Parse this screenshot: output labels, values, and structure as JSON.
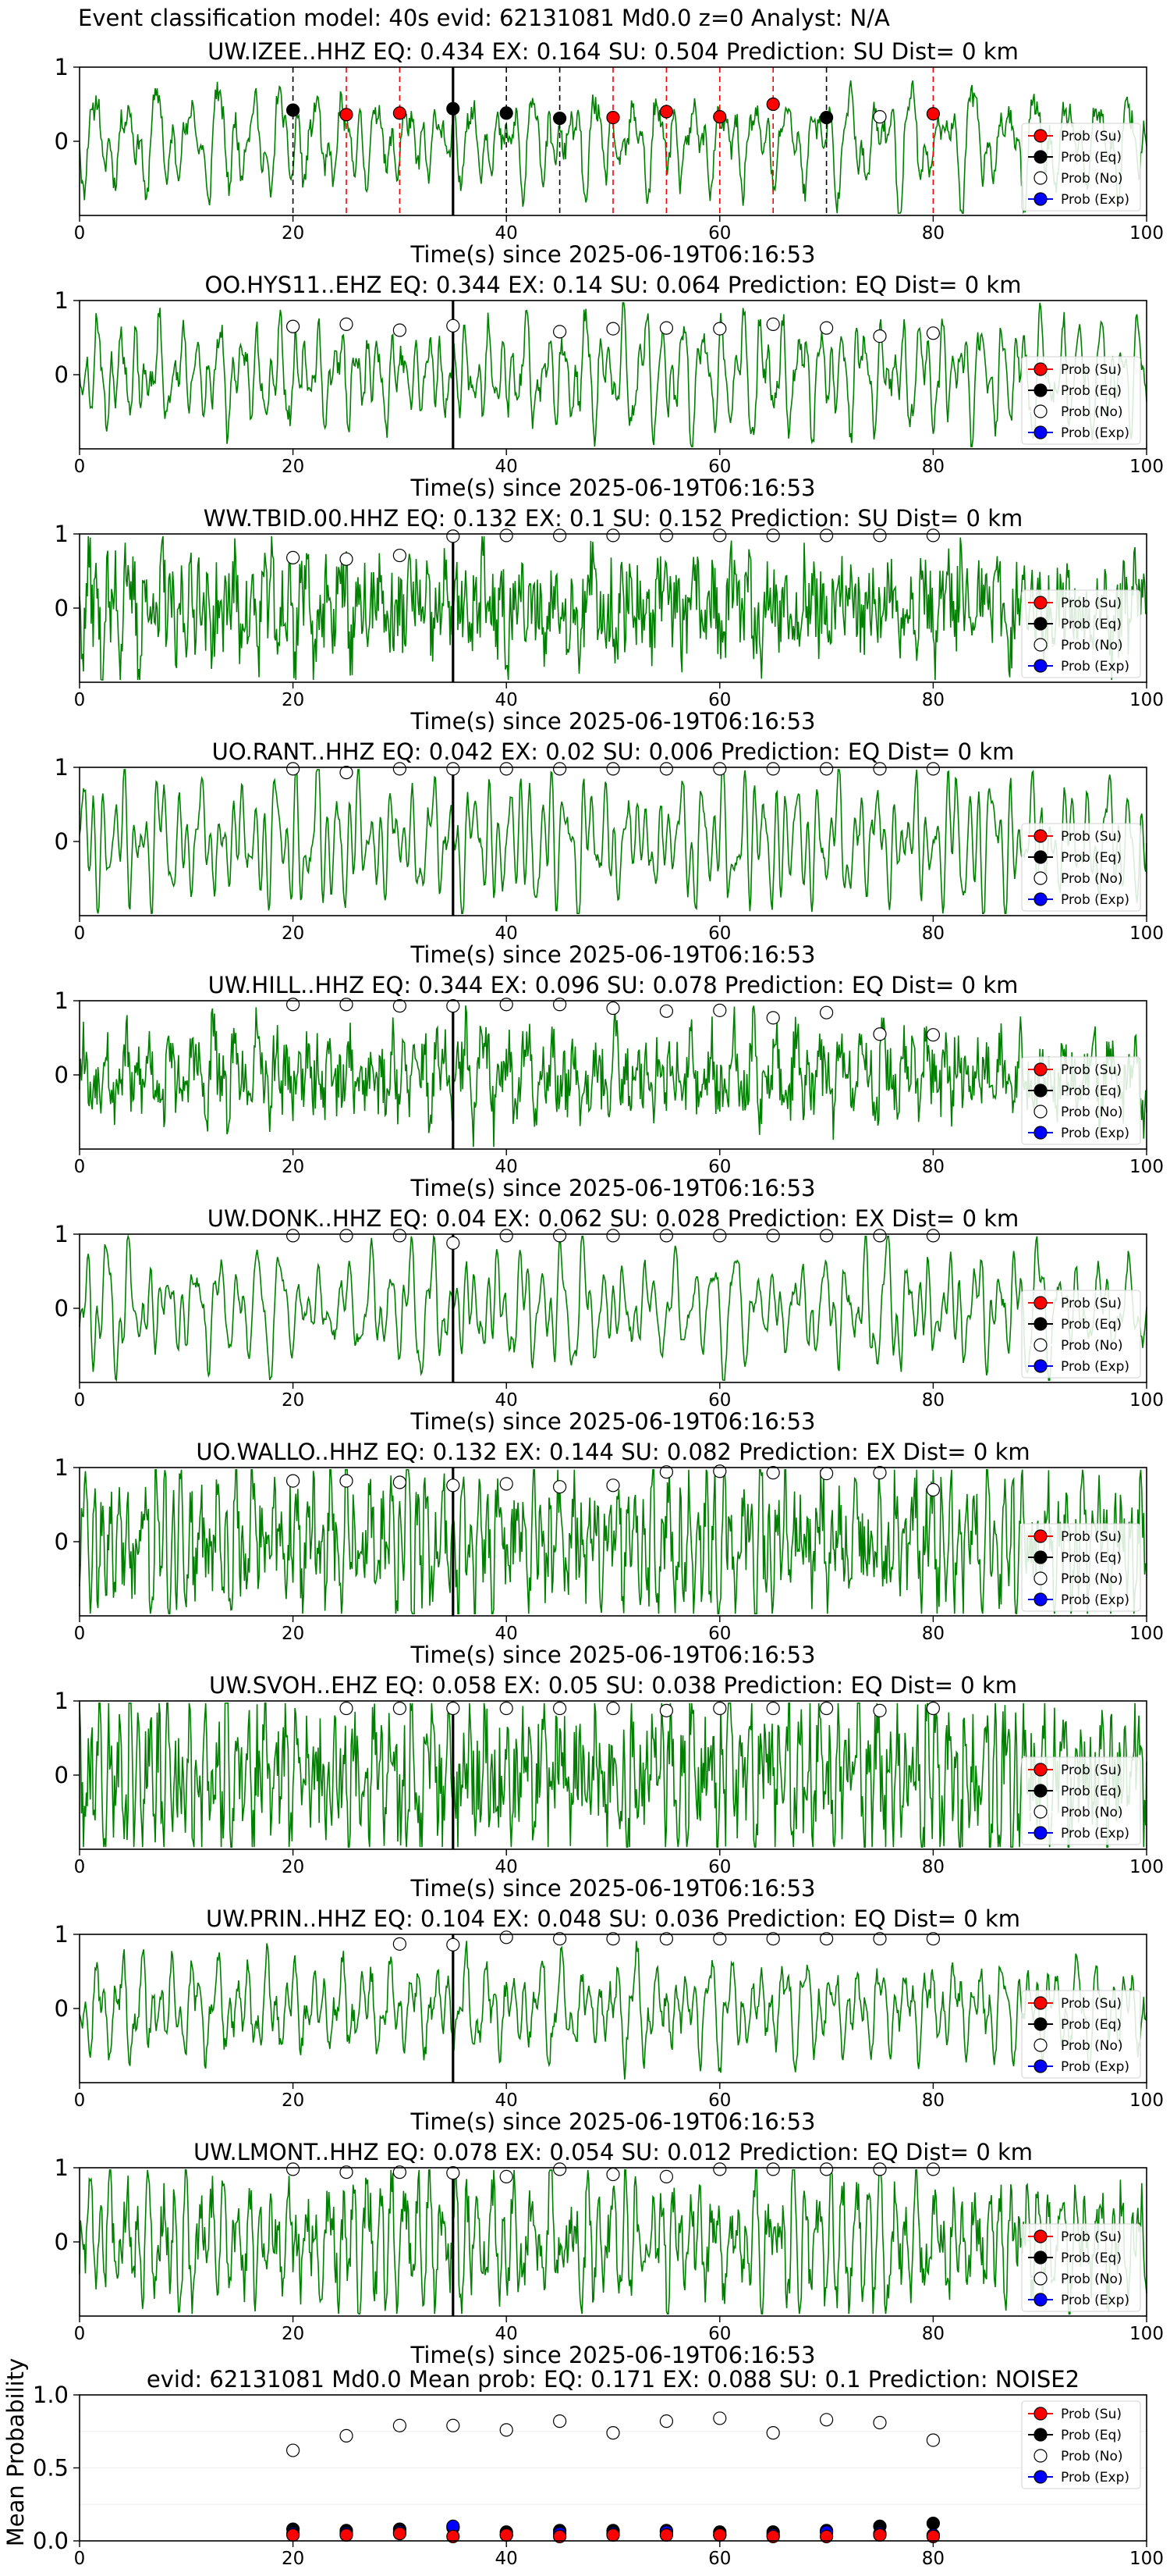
{
  "figure": {
    "title": "Event classification model: 40s evid: 62131081 Md0.0 z=0 Analyst: N/A"
  },
  "colors": {
    "waveform": "#008000",
    "su": "#ff0000",
    "eq": "#000000",
    "no": "#ffffff",
    "exp": "#0000ff",
    "pick_line": "#000000",
    "eq_window": "#000000",
    "su_window": "#ff0000"
  },
  "chart_data": [
    {
      "type": "line",
      "title": "UW.IZEE..HHZ   EQ: 0.434  EX: 0.164  SU: 0.504   Prediction: SU    Dist= 0 km",
      "xlabel": "Time(s) since 2025-06-19T06:16:53",
      "x_ticks": [
        "0",
        "20",
        "40",
        "60",
        "80",
        "100"
      ],
      "y_ticks": [
        "1",
        "0"
      ],
      "xlim": [
        0,
        100
      ],
      "ylim": [
        -1,
        1
      ],
      "pick_time": 35,
      "eq_windows": [
        20,
        35,
        40,
        45,
        70
      ],
      "su_windows": [
        25,
        30,
        50,
        55,
        60,
        65,
        80
      ],
      "legend": [
        "Prob (Su)",
        "Prob (Eq)",
        "Prob (No)",
        "Prob (Exp)"
      ],
      "legend_position": "right",
      "series": [
        {
          "class": "eq",
          "x": [
            20,
            35,
            40,
            45,
            70
          ],
          "y": [
            0.42,
            0.44,
            0.38,
            0.31,
            0.32
          ]
        },
        {
          "class": "su",
          "x": [
            25,
            30,
            50,
            55,
            60,
            65,
            80
          ],
          "y": [
            0.36,
            0.38,
            0.32,
            0.4,
            0.33,
            0.5,
            0.37
          ]
        },
        {
          "class": "no",
          "x": [
            75
          ],
          "y": [
            0.33
          ]
        }
      ]
    },
    {
      "type": "line",
      "title": "OO.HYS11..EHZ   EQ: 0.344  EX: 0.14  SU: 0.064   Prediction: EQ    Dist= 0 km",
      "xlabel": "Time(s) since 2025-06-19T06:16:53",
      "x_ticks": [
        "0",
        "20",
        "40",
        "60",
        "80",
        "100"
      ],
      "y_ticks": [
        "1",
        "0"
      ],
      "xlim": [
        0,
        100
      ],
      "ylim": [
        -1,
        1
      ],
      "pick_time": 35,
      "legend": [
        "Prob (Su)",
        "Prob (Eq)",
        "Prob (No)",
        "Prob (Exp)"
      ],
      "legend_position": "right",
      "series": [
        {
          "class": "no",
          "x": [
            20,
            25,
            30,
            35,
            45,
            50,
            55,
            60,
            65,
            70,
            75,
            80
          ],
          "y": [
            0.65,
            0.68,
            0.6,
            0.66,
            0.58,
            0.62,
            0.63,
            0.62,
            0.68,
            0.63,
            0.52,
            0.56
          ]
        }
      ]
    },
    {
      "type": "line",
      "title": "WW.TBID.00.HHZ   EQ: 0.132  EX: 0.1  SU: 0.152   Prediction: SU    Dist= 0 km",
      "xlabel": "Time(s) since 2025-06-19T06:16:53",
      "x_ticks": [
        "0",
        "20",
        "40",
        "60",
        "80",
        "100"
      ],
      "y_ticks": [
        "1",
        "0"
      ],
      "xlim": [
        0,
        100
      ],
      "ylim": [
        -1,
        1
      ],
      "pick_time": 35,
      "legend": [
        "Prob (Su)",
        "Prob (Eq)",
        "Prob (No)",
        "Prob (Exp)"
      ],
      "legend_position": "right",
      "series": [
        {
          "class": "no",
          "x": [
            20,
            25,
            30,
            35,
            40,
            45,
            50,
            55,
            60,
            65,
            70,
            75,
            80
          ],
          "y": [
            0.68,
            0.66,
            0.71,
            0.97,
            0.98,
            0.98,
            0.98,
            0.98,
            0.98,
            0.98,
            0.98,
            0.98,
            0.98
          ]
        }
      ]
    },
    {
      "type": "line",
      "title": "UO.RANT..HHZ   EQ: 0.042  EX: 0.02  SU: 0.006   Prediction: EQ    Dist= 0 km",
      "xlabel": "Time(s) since 2025-06-19T06:16:53",
      "x_ticks": [
        "0",
        "20",
        "40",
        "60",
        "80",
        "100"
      ],
      "y_ticks": [
        "1",
        "0"
      ],
      "xlim": [
        0,
        100
      ],
      "ylim": [
        -1,
        1
      ],
      "pick_time": 35,
      "legend": [
        "Prob (Su)",
        "Prob (Eq)",
        "Prob (No)",
        "Prob (Exp)"
      ],
      "legend_position": "right",
      "series": [
        {
          "class": "no",
          "x": [
            20,
            25,
            30,
            35,
            40,
            45,
            50,
            55,
            60,
            65,
            70,
            75,
            80
          ],
          "y": [
            0.98,
            0.93,
            0.98,
            0.98,
            0.98,
            0.98,
            0.98,
            0.98,
            0.98,
            0.98,
            0.98,
            0.98,
            0.98
          ]
        }
      ]
    },
    {
      "type": "line",
      "title": "UW.HILL..HHZ   EQ: 0.344  EX: 0.096  SU: 0.078   Prediction: EQ    Dist= 0 km",
      "xlabel": "Time(s) since 2025-06-19T06:16:53",
      "x_ticks": [
        "0",
        "20",
        "40",
        "60",
        "80",
        "100"
      ],
      "y_ticks": [
        "1",
        "0"
      ],
      "xlim": [
        0,
        100
      ],
      "ylim": [
        -1,
        1
      ],
      "pick_time": 35,
      "legend": [
        "Prob (Su)",
        "Prob (Eq)",
        "Prob (No)",
        "Prob (Exp)"
      ],
      "legend_position": "right",
      "series": [
        {
          "class": "no",
          "x": [
            20,
            25,
            30,
            35,
            40,
            45,
            50,
            55,
            60,
            65,
            70,
            75,
            80
          ],
          "y": [
            0.95,
            0.95,
            0.93,
            0.93,
            0.95,
            0.95,
            0.9,
            0.86,
            0.87,
            0.77,
            0.84,
            0.55,
            0.54
          ]
        }
      ]
    },
    {
      "type": "line",
      "title": "UW.DONK..HHZ   EQ: 0.04  EX: 0.062  SU: 0.028   Prediction: EX    Dist= 0 km",
      "xlabel": "Time(s) since 2025-06-19T06:16:53",
      "x_ticks": [
        "0",
        "20",
        "40",
        "60",
        "80",
        "100"
      ],
      "y_ticks": [
        "1",
        "0"
      ],
      "xlim": [
        0,
        100
      ],
      "ylim": [
        -1,
        1
      ],
      "pick_time": 35,
      "legend": [
        "Prob (Su)",
        "Prob (Eq)",
        "Prob (No)",
        "Prob (Exp)"
      ],
      "legend_position": "right",
      "series": [
        {
          "class": "no",
          "x": [
            20,
            25,
            30,
            35,
            40,
            45,
            50,
            55,
            60,
            65,
            70,
            75,
            80
          ],
          "y": [
            0.98,
            0.98,
            0.98,
            0.88,
            0.98,
            0.98,
            0.98,
            0.98,
            0.98,
            0.98,
            0.98,
            0.98,
            0.98
          ]
        }
      ]
    },
    {
      "type": "line",
      "title": "UO.WALLO..HHZ   EQ: 0.132  EX: 0.144  SU: 0.082   Prediction: EX    Dist= 0 km",
      "xlabel": "Time(s) since 2025-06-19T06:16:53",
      "x_ticks": [
        "0",
        "20",
        "40",
        "60",
        "80",
        "100"
      ],
      "y_ticks": [
        "1",
        "0"
      ],
      "xlim": [
        0,
        100
      ],
      "ylim": [
        -1,
        1
      ],
      "pick_time": 35,
      "legend": [
        "Prob (Su)",
        "Prob (Eq)",
        "Prob (No)",
        "Prob (Exp)"
      ],
      "legend_position": "right",
      "series": [
        {
          "class": "no",
          "x": [
            20,
            25,
            30,
            35,
            40,
            45,
            50,
            55,
            60,
            65,
            70,
            75,
            80
          ],
          "y": [
            0.82,
            0.82,
            0.8,
            0.76,
            0.78,
            0.74,
            0.76,
            0.94,
            0.95,
            0.93,
            0.92,
            0.93,
            0.7
          ]
        }
      ]
    },
    {
      "type": "line",
      "title": "UW.SVOH..EHZ   EQ: 0.058  EX: 0.05  SU: 0.038   Prediction: EQ    Dist= 0 km",
      "xlabel": "Time(s) since 2025-06-19T06:16:53",
      "x_ticks": [
        "0",
        "20",
        "40",
        "60",
        "80",
        "100"
      ],
      "y_ticks": [
        "1",
        "0"
      ],
      "xlim": [
        0,
        100
      ],
      "ylim": [
        -1,
        1
      ],
      "pick_time": 35,
      "legend": [
        "Prob (Su)",
        "Prob (Eq)",
        "Prob (No)",
        "Prob (Exp)"
      ],
      "legend_position": "right",
      "series": [
        {
          "class": "no",
          "x": [
            25,
            30,
            35,
            40,
            45,
            50,
            55,
            60,
            65,
            70,
            75,
            80
          ],
          "y": [
            0.9,
            0.9,
            0.9,
            0.9,
            0.9,
            0.9,
            0.87,
            0.9,
            0.9,
            0.9,
            0.87,
            0.9
          ]
        }
      ]
    },
    {
      "type": "line",
      "title": "UW.PRIN..HHZ   EQ: 0.104  EX: 0.048  SU: 0.036   Prediction: EQ    Dist= 0 km",
      "xlabel": "Time(s) since 2025-06-19T06:16:53",
      "x_ticks": [
        "0",
        "20",
        "40",
        "60",
        "80",
        "100"
      ],
      "y_ticks": [
        "1",
        "0"
      ],
      "xlim": [
        0,
        100
      ],
      "ylim": [
        -1,
        1
      ],
      "pick_time": 35,
      "legend": [
        "Prob (Su)",
        "Prob (Eq)",
        "Prob (No)",
        "Prob (Exp)"
      ],
      "legend_position": "right",
      "series": [
        {
          "class": "no",
          "x": [
            30,
            35,
            40,
            45,
            50,
            55,
            60,
            65,
            70,
            75,
            80
          ],
          "y": [
            0.87,
            0.86,
            0.96,
            0.94,
            0.94,
            0.94,
            0.94,
            0.94,
            0.94,
            0.94,
            0.94
          ]
        }
      ]
    },
    {
      "type": "line",
      "title": "UW.LMONT..HHZ   EQ: 0.078  EX: 0.054  SU: 0.012   Prediction: EQ    Dist= 0 km",
      "xlabel": "Time(s) since 2025-06-19T06:16:53",
      "x_ticks": [
        "0",
        "20",
        "40",
        "60",
        "80",
        "100"
      ],
      "y_ticks": [
        "1",
        "0"
      ],
      "xlim": [
        0,
        100
      ],
      "ylim": [
        -1,
        1
      ],
      "pick_time": 35,
      "legend": [
        "Prob (Su)",
        "Prob (Eq)",
        "Prob (No)",
        "Prob (Exp)"
      ],
      "legend_position": "right",
      "series": [
        {
          "class": "no",
          "x": [
            20,
            25,
            30,
            35,
            40,
            45,
            50,
            55,
            60,
            65,
            70,
            75,
            80
          ],
          "y": [
            0.98,
            0.94,
            0.94,
            0.93,
            0.88,
            0.98,
            0.91,
            0.88,
            0.98,
            0.98,
            0.98,
            0.98,
            0.98
          ]
        }
      ]
    },
    {
      "type": "scatter",
      "title": "evid: 62131081  Md0.0   Mean prob:   EQ: 0.171  EX: 0.088  SU: 0.1   Prediction: NOISE2",
      "xlabel": "",
      "ylabel": "Mean Probability",
      "x_ticks": [
        "0",
        "20",
        "40",
        "60",
        "80",
        "100"
      ],
      "y_ticks": [
        "1.0",
        "0.5",
        "0.0"
      ],
      "xlim": [
        0,
        100
      ],
      "ylim": [
        0,
        1
      ],
      "legend": [
        "Prob (Su)",
        "Prob (Eq)",
        "Prob (No)",
        "Prob (Exp)"
      ],
      "legend_position": "right",
      "series": [
        {
          "class": "no",
          "x": [
            20,
            25,
            30,
            35,
            40,
            45,
            50,
            55,
            60,
            65,
            70,
            75,
            80
          ],
          "y": [
            0.62,
            0.72,
            0.79,
            0.79,
            0.76,
            0.82,
            0.74,
            0.82,
            0.84,
            0.74,
            0.83,
            0.81,
            0.69
          ]
        },
        {
          "class": "eq",
          "x": [
            20,
            25,
            30,
            35,
            40,
            45,
            50,
            55,
            60,
            65,
            70,
            75,
            80
          ],
          "y": [
            0.08,
            0.07,
            0.08,
            0.09,
            0.06,
            0.07,
            0.07,
            0.07,
            0.06,
            0.06,
            0.07,
            0.1,
            0.12
          ]
        },
        {
          "class": "exp",
          "x": [
            20,
            25,
            30,
            35,
            40,
            45,
            50,
            55,
            60,
            65,
            70,
            75,
            80
          ],
          "y": [
            0.05,
            0.05,
            0.06,
            0.1,
            0.04,
            0.05,
            0.05,
            0.06,
            0.04,
            0.04,
            0.06,
            0.05,
            0.04
          ]
        },
        {
          "class": "su",
          "x": [
            20,
            25,
            30,
            35,
            40,
            45,
            50,
            55,
            60,
            65,
            70,
            75,
            80
          ],
          "y": [
            0.04,
            0.04,
            0.05,
            0.03,
            0.04,
            0.03,
            0.04,
            0.04,
            0.04,
            0.03,
            0.03,
            0.04,
            0.03
          ]
        }
      ]
    }
  ]
}
